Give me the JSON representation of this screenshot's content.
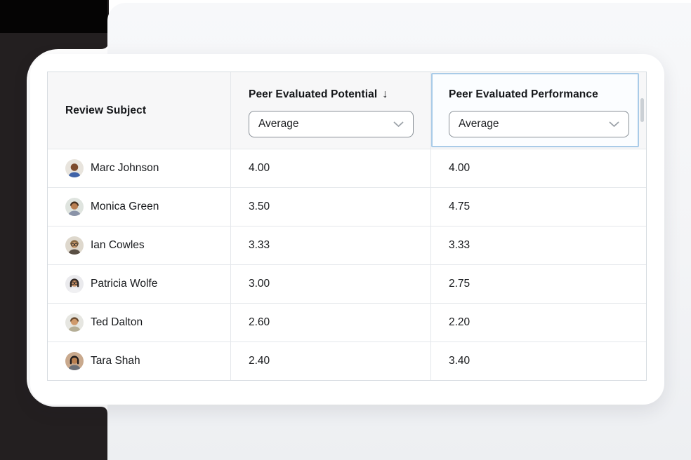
{
  "colors": {
    "highlight": "#a9cbe8",
    "deco_black": "#231f20",
    "deco_black_corner": "#050404",
    "header_bg": "#f7f7f8"
  },
  "table": {
    "columns": [
      {
        "id": "subject",
        "label": "Review Subject"
      },
      {
        "id": "potential",
        "label": "Peer Evaluated Potential",
        "sort_indicator": "↓",
        "filter_value": "Average"
      },
      {
        "id": "performance",
        "label": "Peer Evaluated Performance",
        "filter_value": "Average",
        "highlighted": true
      }
    ],
    "rows": [
      {
        "name": "Marc Johnson",
        "potential": "4.00",
        "performance": "4.00",
        "avatar": {
          "bg": "#e8e4dd",
          "skin": "#7d4b2d",
          "hair": "none",
          "hairColor": "#2a211c",
          "shirt": "#3f63a8",
          "glasses": false
        }
      },
      {
        "name": "Monica Green",
        "potential": "3.50",
        "performance": "4.75",
        "avatar": {
          "bg": "#dfe4df",
          "skin": "#b97f52",
          "hair": "short",
          "hairColor": "#45301f",
          "shirt": "#8a93a8",
          "glasses": false
        }
      },
      {
        "name": "Ian Cowles",
        "potential": "3.33",
        "performance": "3.33",
        "avatar": {
          "bg": "#ded8cd",
          "skin": "#c9996b",
          "hair": "short",
          "hairColor": "#8a6b44",
          "shirt": "#5a4f44",
          "glasses": true
        }
      },
      {
        "name": "Patricia Wolfe",
        "potential": "3.00",
        "performance": "2.75",
        "avatar": {
          "bg": "#eaeaed",
          "skin": "#c98f63",
          "hair": "bob",
          "hairColor": "#2b2320",
          "shirt": "#f0f0f2",
          "glasses": true
        }
      },
      {
        "name": "Ted Dalton",
        "potential": "2.60",
        "performance": "2.20",
        "avatar": {
          "bg": "#e6e6e1",
          "skin": "#cf9a6c",
          "hair": "short",
          "hairColor": "#6b4c30",
          "shirt": "#b5ae96",
          "glasses": false
        }
      },
      {
        "name": "Tara Shah",
        "potential": "2.40",
        "performance": "3.40",
        "avatar": {
          "bg": "#c9a98d",
          "skin": "#b87f50",
          "hair": "bob",
          "hairColor": "#1d1a1b",
          "shirt": "#6b6f76",
          "glasses": false
        }
      }
    ]
  }
}
